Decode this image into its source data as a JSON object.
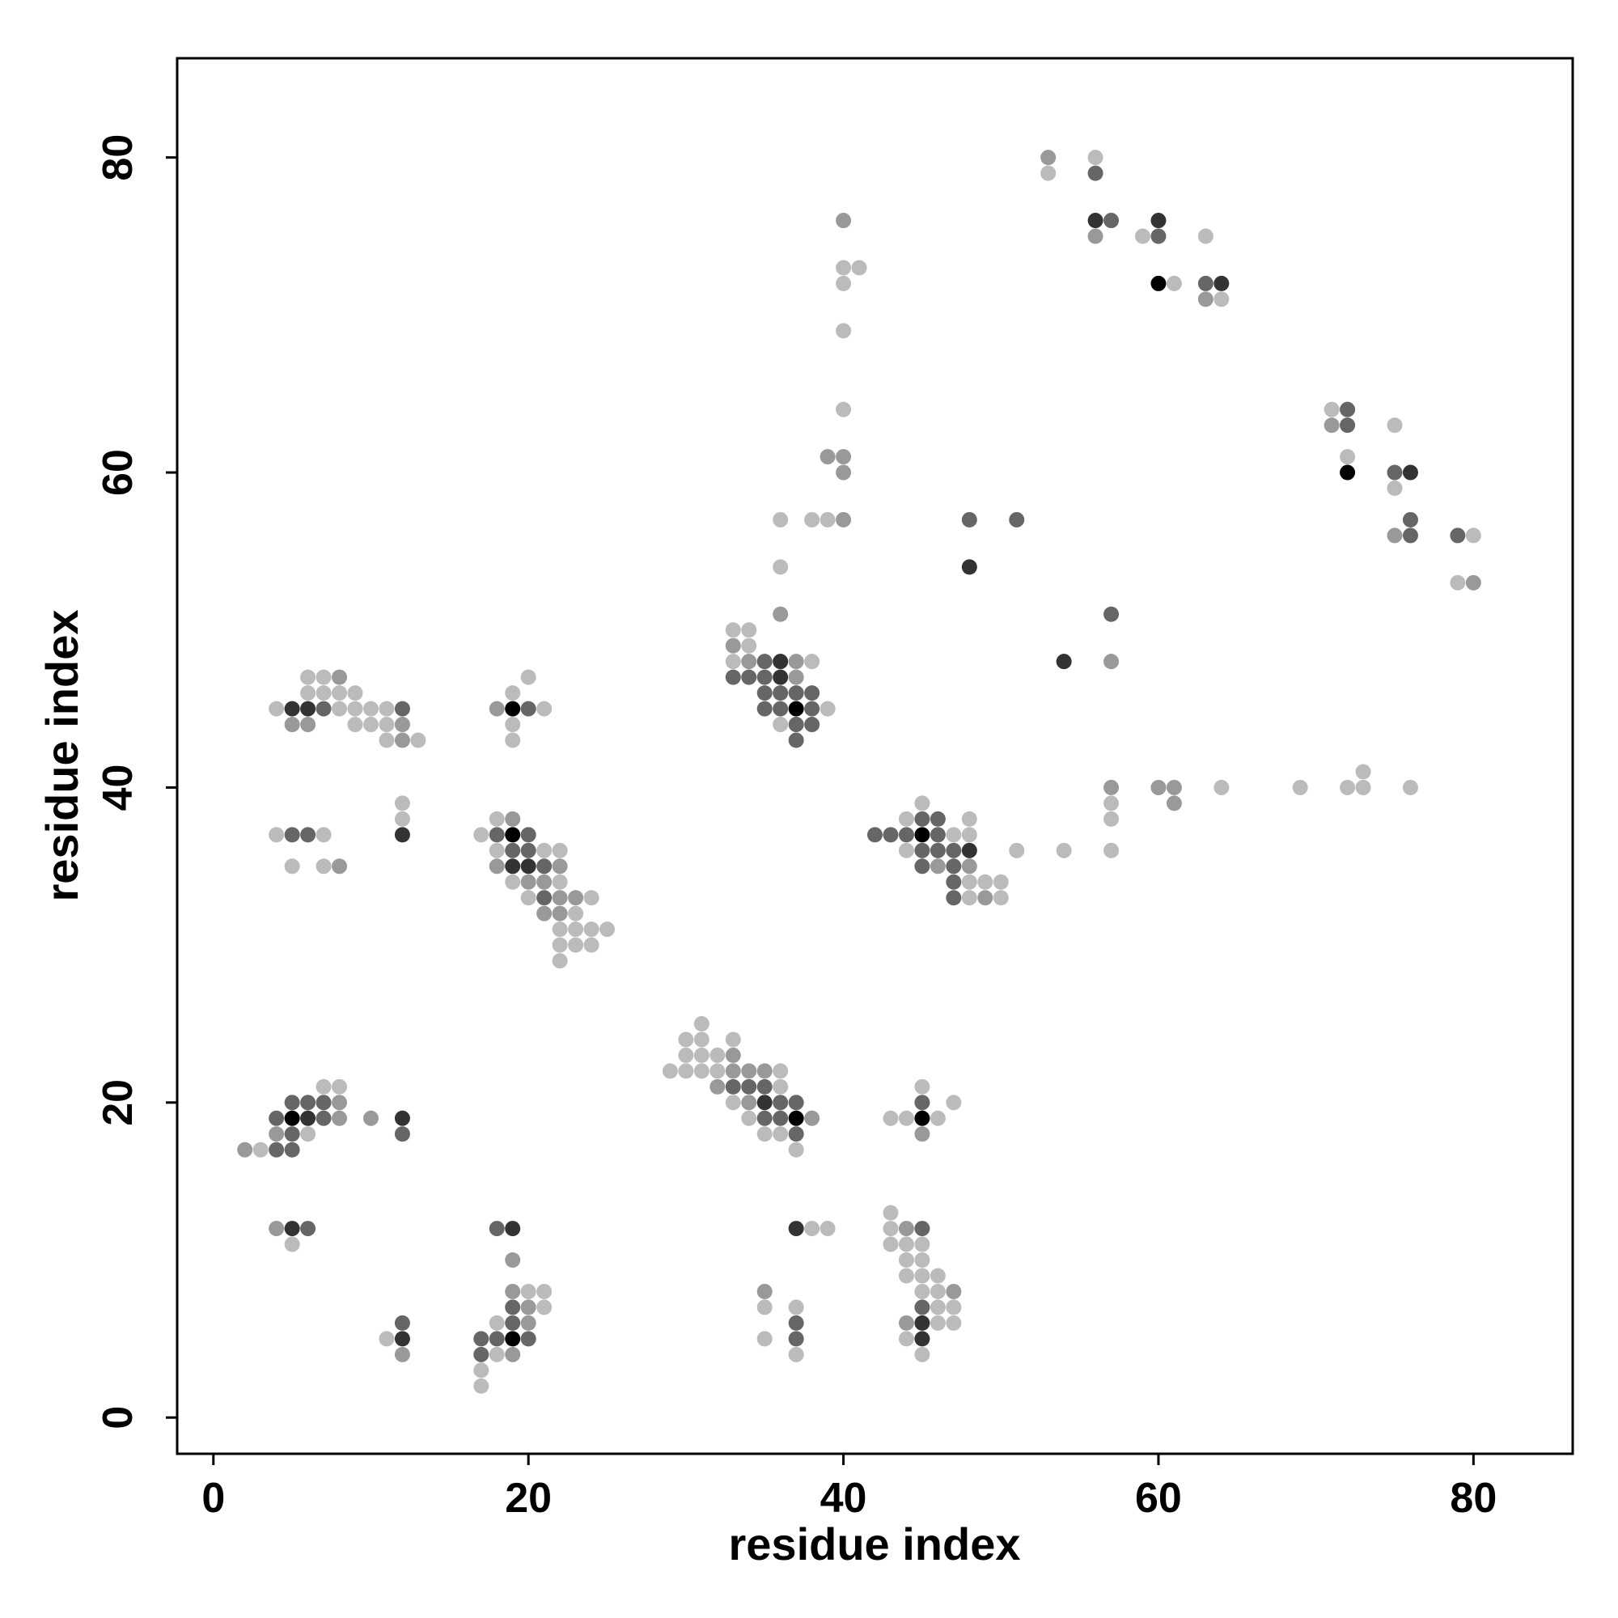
{
  "chart_data": {
    "type": "scatter",
    "title": "",
    "xlabel": "residue index",
    "ylabel": "residue index",
    "xlim": [
      -2.3,
      86.3
    ],
    "ylim": [
      -2.3,
      86.3
    ],
    "xticks": [
      0,
      20,
      40,
      60,
      80
    ],
    "yticks": [
      0,
      20,
      40,
      60,
      80
    ],
    "grid": false,
    "legend": "none",
    "colors": {
      "l1": "#bbbbbb",
      "l2": "#999999",
      "l3": "#666666",
      "l4": "#333333",
      "l5": "#000000"
    },
    "points": [
      [
        2,
        17,
        2
      ],
      [
        3,
        17,
        1
      ],
      [
        4,
        17,
        3
      ],
      [
        5,
        17,
        3
      ],
      [
        4,
        18,
        2
      ],
      [
        5,
        18,
        3
      ],
      [
        6,
        18,
        1
      ],
      [
        4,
        19,
        3
      ],
      [
        5,
        19,
        5
      ],
      [
        6,
        19,
        4
      ],
      [
        7,
        19,
        3
      ],
      [
        8,
        19,
        2
      ],
      [
        5,
        20,
        3
      ],
      [
        6,
        20,
        3
      ],
      [
        7,
        20,
        3
      ],
      [
        8,
        20,
        2
      ],
      [
        7,
        21,
        1
      ],
      [
        8,
        21,
        1
      ],
      [
        10,
        19,
        2
      ],
      [
        12,
        19,
        4
      ],
      [
        12,
        18,
        3
      ],
      [
        4,
        12,
        2
      ],
      [
        5,
        12,
        4
      ],
      [
        6,
        12,
        3
      ],
      [
        5,
        11,
        1
      ],
      [
        4,
        37,
        1
      ],
      [
        5,
        37,
        3
      ],
      [
        6,
        37,
        3
      ],
      [
        7,
        37,
        1
      ],
      [
        5,
        35,
        1
      ],
      [
        7,
        35,
        1
      ],
      [
        8,
        35,
        2
      ],
      [
        12,
        37,
        4
      ],
      [
        12,
        38,
        1
      ],
      [
        12,
        39,
        1
      ],
      [
        4,
        45,
        1
      ],
      [
        5,
        45,
        4
      ],
      [
        6,
        45,
        4
      ],
      [
        7,
        45,
        3
      ],
      [
        8,
        45,
        1
      ],
      [
        9,
        45,
        1
      ],
      [
        10,
        45,
        1
      ],
      [
        11,
        45,
        1
      ],
      [
        12,
        45,
        3
      ],
      [
        5,
        44,
        2
      ],
      [
        6,
        44,
        2
      ],
      [
        9,
        44,
        1
      ],
      [
        10,
        44,
        1
      ],
      [
        11,
        44,
        1
      ],
      [
        12,
        44,
        2
      ],
      [
        6,
        46,
        1
      ],
      [
        7,
        46,
        1
      ],
      [
        8,
        46,
        1
      ],
      [
        9,
        46,
        1
      ],
      [
        6,
        47,
        1
      ],
      [
        7,
        47,
        1
      ],
      [
        8,
        47,
        2
      ],
      [
        11,
        43,
        1
      ],
      [
        12,
        43,
        2
      ],
      [
        13,
        43,
        1
      ],
      [
        11,
        5,
        1
      ],
      [
        12,
        5,
        4
      ],
      [
        12,
        4,
        2
      ],
      [
        12,
        6,
        3
      ],
      [
        17,
        2,
        1
      ],
      [
        17,
        3,
        1
      ],
      [
        17,
        4,
        3
      ],
      [
        18,
        4,
        1
      ],
      [
        19,
        4,
        2
      ],
      [
        17,
        5,
        3
      ],
      [
        18,
        5,
        3
      ],
      [
        19,
        5,
        5
      ],
      [
        20,
        5,
        3
      ],
      [
        18,
        6,
        1
      ],
      [
        19,
        6,
        3
      ],
      [
        20,
        6,
        2
      ],
      [
        19,
        7,
        3
      ],
      [
        20,
        7,
        2
      ],
      [
        21,
        7,
        1
      ],
      [
        19,
        8,
        2
      ],
      [
        20,
        8,
        1
      ],
      [
        21,
        8,
        1
      ],
      [
        19,
        10,
        2
      ],
      [
        18,
        12,
        3
      ],
      [
        19,
        12,
        4
      ],
      [
        17,
        37,
        1
      ],
      [
        18,
        37,
        3
      ],
      [
        19,
        37,
        5
      ],
      [
        20,
        37,
        3
      ],
      [
        18,
        36,
        1
      ],
      [
        19,
        36,
        3
      ],
      [
        20,
        36,
        3
      ],
      [
        21,
        36,
        1
      ],
      [
        22,
        36,
        1
      ],
      [
        18,
        35,
        2
      ],
      [
        19,
        35,
        4
      ],
      [
        20,
        35,
        4
      ],
      [
        21,
        35,
        3
      ],
      [
        22,
        35,
        2
      ],
      [
        19,
        34,
        1
      ],
      [
        20,
        34,
        2
      ],
      [
        21,
        34,
        2
      ],
      [
        22,
        34,
        1
      ],
      [
        20,
        33,
        1
      ],
      [
        21,
        33,
        3
      ],
      [
        22,
        33,
        2
      ],
      [
        23,
        33,
        2
      ],
      [
        24,
        33,
        1
      ],
      [
        21,
        32,
        2
      ],
      [
        22,
        32,
        2
      ],
      [
        23,
        32,
        1
      ],
      [
        22,
        31,
        1
      ],
      [
        23,
        31,
        1
      ],
      [
        24,
        31,
        1
      ],
      [
        25,
        31,
        1
      ],
      [
        22,
        30,
        1
      ],
      [
        23,
        30,
        1
      ],
      [
        24,
        30,
        1
      ],
      [
        22,
        29,
        1
      ],
      [
        18,
        38,
        1
      ],
      [
        19,
        38,
        2
      ],
      [
        18,
        45,
        2
      ],
      [
        19,
        45,
        5
      ],
      [
        20,
        45,
        3
      ],
      [
        21,
        45,
        1
      ],
      [
        19,
        46,
        1
      ],
      [
        20,
        47,
        1
      ],
      [
        19,
        44,
        1
      ],
      [
        19,
        43,
        1
      ],
      [
        29,
        22,
        1
      ],
      [
        30,
        22,
        1
      ],
      [
        31,
        22,
        1
      ],
      [
        32,
        22,
        1
      ],
      [
        33,
        22,
        2
      ],
      [
        34,
        22,
        2
      ],
      [
        35,
        22,
        2
      ],
      [
        36,
        22,
        1
      ],
      [
        30,
        23,
        1
      ],
      [
        31,
        23,
        1
      ],
      [
        32,
        23,
        1
      ],
      [
        33,
        23,
        2
      ],
      [
        30,
        24,
        1
      ],
      [
        31,
        24,
        1
      ],
      [
        33,
        24,
        1
      ],
      [
        31,
        25,
        1
      ],
      [
        32,
        21,
        2
      ],
      [
        33,
        21,
        3
      ],
      [
        34,
        21,
        3
      ],
      [
        35,
        21,
        3
      ],
      [
        36,
        21,
        1
      ],
      [
        33,
        20,
        1
      ],
      [
        34,
        20,
        2
      ],
      [
        35,
        20,
        4
      ],
      [
        36,
        20,
        3
      ],
      [
        37,
        20,
        3
      ],
      [
        34,
        19,
        1
      ],
      [
        35,
        19,
        3
      ],
      [
        36,
        19,
        3
      ],
      [
        37,
        19,
        5
      ],
      [
        38,
        19,
        2
      ],
      [
        35,
        18,
        1
      ],
      [
        36,
        18,
        1
      ],
      [
        37,
        18,
        3
      ],
      [
        37,
        17,
        1
      ],
      [
        37,
        12,
        4
      ],
      [
        38,
        12,
        1
      ],
      [
        39,
        12,
        1
      ],
      [
        35,
        8,
        2
      ],
      [
        35,
        7,
        1
      ],
      [
        35,
        5,
        1
      ],
      [
        37,
        7,
        1
      ],
      [
        37,
        6,
        3
      ],
      [
        37,
        5,
        3
      ],
      [
        37,
        4,
        1
      ],
      [
        33,
        50,
        1
      ],
      [
        34,
        50,
        1
      ],
      [
        33,
        49,
        2
      ],
      [
        34,
        49,
        1
      ],
      [
        33,
        48,
        1
      ],
      [
        34,
        48,
        2
      ],
      [
        35,
        48,
        3
      ],
      [
        36,
        48,
        4
      ],
      [
        37,
        48,
        2
      ],
      [
        38,
        48,
        1
      ],
      [
        33,
        47,
        3
      ],
      [
        34,
        47,
        3
      ],
      [
        35,
        47,
        3
      ],
      [
        36,
        47,
        4
      ],
      [
        37,
        47,
        2
      ],
      [
        35,
        46,
        3
      ],
      [
        36,
        46,
        3
      ],
      [
        37,
        46,
        3
      ],
      [
        38,
        46,
        3
      ],
      [
        35,
        45,
        3
      ],
      [
        36,
        45,
        3
      ],
      [
        37,
        45,
        5
      ],
      [
        38,
        45,
        3
      ],
      [
        39,
        45,
        1
      ],
      [
        36,
        44,
        1
      ],
      [
        37,
        44,
        3
      ],
      [
        38,
        44,
        3
      ],
      [
        37,
        43,
        3
      ],
      [
        36,
        51,
        2
      ],
      [
        36,
        54,
        1
      ],
      [
        36,
        57,
        1
      ],
      [
        38,
        57,
        1
      ],
      [
        39,
        57,
        1
      ],
      [
        40,
        57,
        2
      ],
      [
        39,
        61,
        2
      ],
      [
        40,
        61,
        2
      ],
      [
        40,
        60,
        2
      ],
      [
        40,
        64,
        1
      ],
      [
        40,
        69,
        1
      ],
      [
        40,
        72,
        1
      ],
      [
        40,
        73,
        1
      ],
      [
        41,
        73,
        1
      ],
      [
        40,
        76,
        2
      ],
      [
        43,
        13,
        1
      ],
      [
        43,
        12,
        1
      ],
      [
        44,
        12,
        2
      ],
      [
        45,
        12,
        3
      ],
      [
        43,
        11,
        1
      ],
      [
        44,
        11,
        1
      ],
      [
        45,
        11,
        1
      ],
      [
        44,
        10,
        1
      ],
      [
        45,
        10,
        1
      ],
      [
        44,
        9,
        1
      ],
      [
        45,
        9,
        1
      ],
      [
        46,
        9,
        1
      ],
      [
        45,
        8,
        1
      ],
      [
        46,
        8,
        1
      ],
      [
        47,
        8,
        2
      ],
      [
        45,
        7,
        3
      ],
      [
        46,
        7,
        1
      ],
      [
        47,
        7,
        1
      ],
      [
        44,
        6,
        2
      ],
      [
        45,
        6,
        4
      ],
      [
        46,
        6,
        1
      ],
      [
        47,
        6,
        1
      ],
      [
        44,
        5,
        1
      ],
      [
        45,
        5,
        4
      ],
      [
        45,
        4,
        1
      ],
      [
        43,
        19,
        1
      ],
      [
        44,
        19,
        1
      ],
      [
        45,
        19,
        5
      ],
      [
        46,
        19,
        1
      ],
      [
        45,
        20,
        3
      ],
      [
        45,
        21,
        1
      ],
      [
        47,
        20,
        1
      ],
      [
        45,
        18,
        2
      ],
      [
        42,
        37,
        3
      ],
      [
        43,
        37,
        3
      ],
      [
        44,
        37,
        3
      ],
      [
        45,
        37,
        5
      ],
      [
        46,
        37,
        3
      ],
      [
        47,
        37,
        1
      ],
      [
        48,
        37,
        1
      ],
      [
        44,
        38,
        1
      ],
      [
        45,
        38,
        3
      ],
      [
        46,
        38,
        3
      ],
      [
        48,
        38,
        1
      ],
      [
        45,
        39,
        1
      ],
      [
        44,
        36,
        1
      ],
      [
        45,
        36,
        3
      ],
      [
        46,
        36,
        3
      ],
      [
        47,
        36,
        3
      ],
      [
        48,
        36,
        4
      ],
      [
        45,
        35,
        3
      ],
      [
        46,
        35,
        2
      ],
      [
        47,
        35,
        3
      ],
      [
        48,
        35,
        2
      ],
      [
        47,
        34,
        3
      ],
      [
        48,
        34,
        1
      ],
      [
        49,
        34,
        1
      ],
      [
        50,
        34,
        1
      ],
      [
        47,
        33,
        3
      ],
      [
        48,
        33,
        1
      ],
      [
        49,
        33,
        2
      ],
      [
        50,
        33,
        1
      ],
      [
        51,
        36,
        1
      ],
      [
        48,
        57,
        3
      ],
      [
        51,
        57,
        3
      ],
      [
        48,
        54,
        4
      ],
      [
        54,
        48,
        4
      ],
      [
        57,
        51,
        3
      ],
      [
        57,
        48,
        2
      ],
      [
        54,
        36,
        1
      ],
      [
        57,
        36,
        1
      ],
      [
        57,
        38,
        1
      ],
      [
        57,
        39,
        1
      ],
      [
        57,
        40,
        2
      ],
      [
        60,
        40,
        2
      ],
      [
        61,
        40,
        2
      ],
      [
        61,
        39,
        2
      ],
      [
        64,
        40,
        1
      ],
      [
        69,
        40,
        1
      ],
      [
        72,
        40,
        1
      ],
      [
        73,
        40,
        1
      ],
      [
        73,
        41,
        1
      ],
      [
        76,
        40,
        1
      ],
      [
        53,
        80,
        2
      ],
      [
        53,
        79,
        1
      ],
      [
        56,
        80,
        1
      ],
      [
        56,
        79,
        3
      ],
      [
        56,
        76,
        4
      ],
      [
        57,
        76,
        3
      ],
      [
        56,
        75,
        2
      ],
      [
        59,
        75,
        1
      ],
      [
        60,
        76,
        4
      ],
      [
        60,
        75,
        3
      ],
      [
        60,
        72,
        5
      ],
      [
        61,
        72,
        1
      ],
      [
        63,
        75,
        1
      ],
      [
        63,
        72,
        3
      ],
      [
        64,
        72,
        4
      ],
      [
        63,
        71,
        2
      ],
      [
        64,
        71,
        1
      ],
      [
        71,
        64,
        1
      ],
      [
        72,
        64,
        3
      ],
      [
        71,
        63,
        2
      ],
      [
        72,
        63,
        3
      ],
      [
        72,
        61,
        1
      ],
      [
        72,
        60,
        5
      ],
      [
        75,
        63,
        1
      ],
      [
        75,
        60,
        3
      ],
      [
        76,
        60,
        4
      ],
      [
        75,
        59,
        1
      ],
      [
        75,
        56,
        2
      ],
      [
        76,
        56,
        3
      ],
      [
        76,
        57,
        3
      ],
      [
        79,
        56,
        3
      ],
      [
        80,
        56,
        1
      ],
      [
        79,
        53,
        1
      ],
      [
        80,
        53,
        2
      ]
    ]
  }
}
